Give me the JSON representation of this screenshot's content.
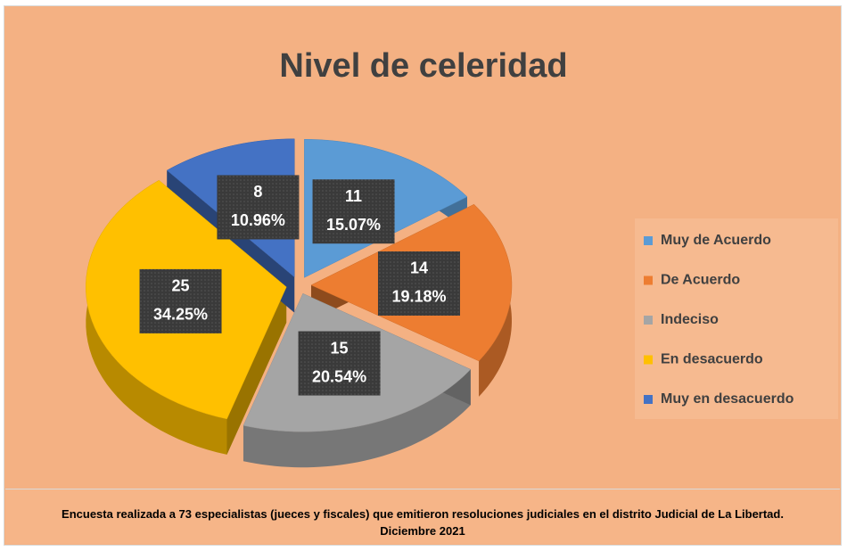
{
  "chart_data": {
    "type": "pie",
    "title": "Nivel de celeridad",
    "categories": [
      "Muy de Acuerdo",
      "De Acuerdo",
      "Indeciso",
      "En desacuerdo",
      "Muy en desacuerdo"
    ],
    "values": [
      11,
      14,
      15,
      25,
      8
    ],
    "percentages": [
      15.07,
      19.18,
      20.54,
      34.25,
      10.96
    ],
    "percentage_labels": [
      "15.07%",
      "19.18%",
      "20.54%",
      "34.25%",
      "10.96%"
    ],
    "colors": [
      "#5b9bd5",
      "#ed7d31",
      "#a5a5a5",
      "#ffc000",
      "#4472c4"
    ],
    "legend": "right",
    "footnote": "Encuesta realizada a 73 especialistas (jueces y fiscales) que emitieron resoluciones judiciales en el distrito Judicial  de La Libertad. Diciembre  2021"
  }
}
